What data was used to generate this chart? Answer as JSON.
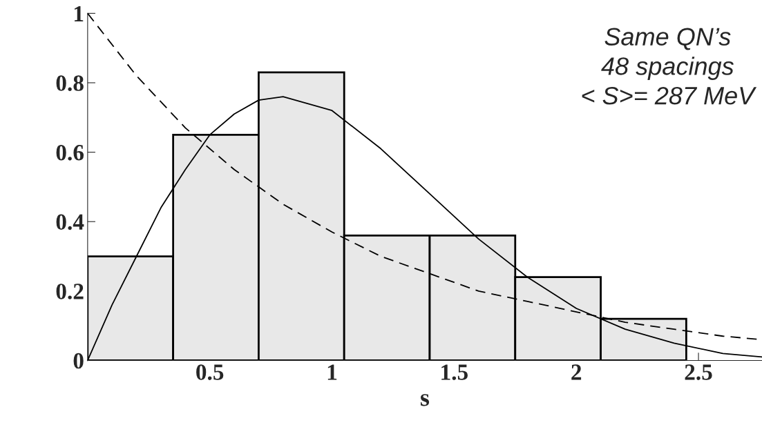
{
  "chart_data": {
    "type": "histogram",
    "xlabel": "s",
    "bins": [
      0,
      0.35,
      0.7,
      1.05,
      1.4,
      1.75,
      2.1,
      2.45
    ],
    "values": [
      0.3,
      0.65,
      0.83,
      0.36,
      0.36,
      0.24,
      0.12
    ],
    "color": "#e8e8e8",
    "series": [
      {
        "type": "line",
        "color": "#000000",
        "line_style": "solid",
        "x": [
          0,
          0.1,
          0.2,
          0.3,
          0.4,
          0.5,
          0.6,
          0.7,
          0.8,
          0.9,
          1.0,
          1.2,
          1.4,
          1.6,
          1.8,
          2.0,
          2.2,
          2.4,
          2.6,
          2.76
        ],
        "values": [
          0,
          0.16,
          0.3,
          0.44,
          0.55,
          0.65,
          0.71,
          0.75,
          0.76,
          0.74,
          0.72,
          0.61,
          0.48,
          0.35,
          0.24,
          0.15,
          0.09,
          0.05,
          0.02,
          0.01
        ]
      },
      {
        "type": "line",
        "color": "#000000",
        "line_style": "dashed",
        "x": [
          0,
          0.2,
          0.4,
          0.6,
          0.8,
          1.0,
          1.2,
          1.4,
          1.6,
          1.8,
          2.0,
          2.2,
          2.4,
          2.6,
          2.76
        ],
        "values": [
          1,
          0.82,
          0.67,
          0.55,
          0.45,
          0.37,
          0.3,
          0.25,
          0.2,
          0.17,
          0.14,
          0.11,
          0.09,
          0.07,
          0.06
        ]
      }
    ],
    "annotations": [
      "Same QN’s",
      "48 spacings",
      "< S>= 287 MeV"
    ],
    "xlim": [
      0,
      2.76
    ],
    "ylim": [
      0,
      1
    ],
    "xticks": [
      0.5,
      1,
      1.5,
      2,
      2.5
    ],
    "yticks": [
      0,
      0.2,
      0.4,
      0.6,
      0.8,
      1
    ],
    "grid": false
  }
}
